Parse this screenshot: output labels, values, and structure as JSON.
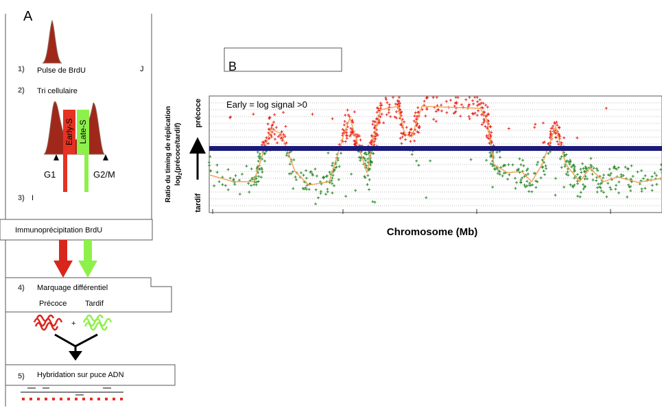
{
  "panel_a": {
    "label": "A",
    "stray_1": "J",
    "steps": [
      {
        "number": "1)",
        "text": "Pulse de BrdU"
      },
      {
        "number": "2)",
        "text": "Tri cellulaire"
      },
      {
        "number": "3)",
        "text": "I"
      },
      {
        "number": "4)",
        "text": "Marquage différentiel"
      },
      {
        "number": "5)",
        "text": "Hybridation sur puce ADN"
      }
    ],
    "sort": {
      "early": "Early-S",
      "late": "Late-S",
      "g1": "G1",
      "g2m": "G2/M"
    },
    "ip_box": "Immunoprécipitation BrdU",
    "labeling": {
      "early": "Précoce",
      "late": "Tardif",
      "plus": "+"
    }
  },
  "panel_b": {
    "label": "B",
    "annotation": "Early = log signal >0",
    "x_label": "Chromosome (Mb)",
    "y_label_1": "Ratio du timing de réplication",
    "y_label_2": "log",
    "y_label_2_sub": "2",
    "y_label_2_rest": "(précoce/tardif)",
    "y_early": "précoce",
    "y_late": "tardif"
  }
}
